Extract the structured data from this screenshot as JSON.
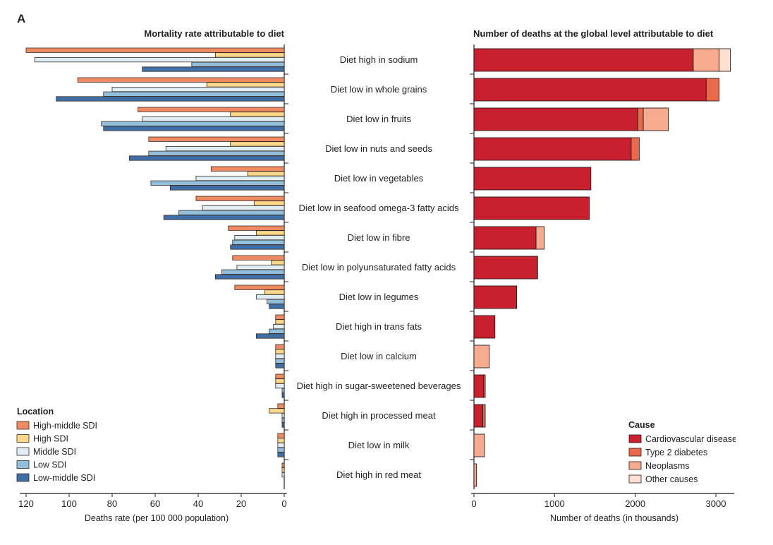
{
  "figure": {
    "panel_label": "A"
  },
  "colors": {
    "High-middle SDI": "#ef8a62",
    "High SDI": "#fdd88a",
    "Middle SDI": "#deeef4",
    "Low SDI": "#92bfdb",
    "Low-middle SDI": "#3f6fa6",
    "Cardiovascular diseases": "#c8202f",
    "Type 2 diabetes": "#e96a4b",
    "Neoplasms": "#f6ab8e",
    "Other causes": "#fde0d2"
  },
  "chart_data": [
    {
      "type": "bar",
      "orientation": "horizontal",
      "direction": "reversed",
      "title": "Mortality rate attributable to diet",
      "xlabel": "Deaths rate (per 100 000 population)",
      "xlim": [
        0,
        120
      ],
      "xticks": [
        120,
        100,
        80,
        60,
        40,
        20,
        0
      ],
      "legend": {
        "title": "Location",
        "position": "bottom-left"
      },
      "categories": [
        "Diet high in sodium",
        "Diet low in whole grains",
        "Diet low in fruits",
        "Diet low in nuts and seeds",
        "Diet low in vegetables",
        "Diet low in seafood omega-3 fatty acids",
        "Diet low in fibre",
        "Diet low in polyunsaturated fatty acids",
        "Diet low in legumes",
        "Diet high in trans fats",
        "Diet low in calcium",
        "Diet high in sugar-sweetened beverages",
        "Diet high in processed meat",
        "Diet low in milk",
        "Diet high in red meat"
      ],
      "series": [
        {
          "name": "High-middle SDI",
          "values": [
            120,
            96,
            68,
            63,
            34,
            41,
            26,
            24,
            23,
            4,
            4,
            4,
            3,
            3,
            1
          ]
        },
        {
          "name": "High SDI",
          "values": [
            32,
            36,
            25,
            25,
            17,
            14,
            13,
            6,
            9,
            4,
            4,
            4,
            7,
            3,
            1
          ]
        },
        {
          "name": "Middle SDI",
          "values": [
            116,
            80,
            66,
            55,
            41,
            38,
            23,
            22,
            13,
            5,
            4,
            4,
            1,
            3,
            1
          ]
        },
        {
          "name": "Low SDI",
          "values": [
            43,
            84,
            85,
            63,
            62,
            49,
            24,
            29,
            8,
            7,
            4,
            1,
            1,
            3,
            0
          ]
        },
        {
          "name": "Low-middle SDI",
          "values": [
            66,
            106,
            84,
            72,
            53,
            56,
            25,
            32,
            7,
            13,
            4,
            1,
            1,
            3,
            0
          ]
        }
      ]
    },
    {
      "type": "bar",
      "orientation": "horizontal",
      "stacked": true,
      "title": "Number of deaths at the global level attributable to diet",
      "xlabel": "Number of deaths (in thousands)",
      "xlim": [
        0,
        3200
      ],
      "xticks": [
        0,
        1000,
        2000,
        3000
      ],
      "legend": {
        "title": "Cause",
        "position": "bottom-right"
      },
      "categories": [
        "Diet high in sodium",
        "Diet low in whole grains",
        "Diet low in fruits",
        "Diet low in nuts and seeds",
        "Diet low in vegetables",
        "Diet low in seafood omega-3 fatty acids",
        "Diet low in fibre",
        "Diet low in polyunsaturated fatty acids",
        "Diet low in legumes",
        "Diet high in trans fats",
        "Diet low in calcium",
        "Diet high in sugar-sweetened beverages",
        "Diet high in processed meat",
        "Diet low in milk",
        "Diet high in red meat"
      ],
      "series": [
        {
          "name": "Cardiovascular diseases",
          "values": [
            2720,
            2880,
            2030,
            1950,
            1450,
            1430,
            770,
            790,
            530,
            260,
            0,
            120,
            110,
            0,
            0
          ]
        },
        {
          "name": "Type 2 diabetes",
          "values": [
            0,
            160,
            70,
            100,
            0,
            0,
            0,
            0,
            0,
            0,
            0,
            20,
            30,
            0,
            0
          ]
        },
        {
          "name": "Neoplasms",
          "values": [
            320,
            0,
            310,
            0,
            0,
            0,
            100,
            0,
            0,
            0,
            190,
            0,
            0,
            130,
            30
          ]
        },
        {
          "name": "Other causes",
          "values": [
            140,
            0,
            0,
            0,
            0,
            0,
            0,
            0,
            0,
            0,
            0,
            0,
            0,
            0,
            0
          ]
        }
      ]
    }
  ]
}
